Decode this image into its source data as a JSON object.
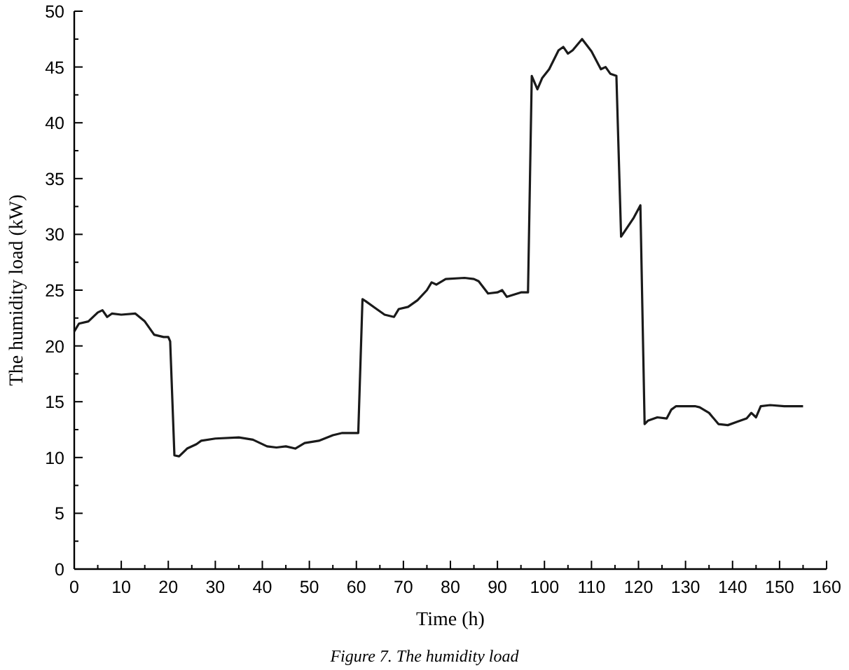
{
  "chart_data": {
    "type": "line",
    "xlabel": "Time (h)",
    "ylabel": "The humidity load (kW)",
    "annotations": [
      "Figure 7. The humidity load"
    ],
    "xlim": [
      0,
      160
    ],
    "xticks": [
      0,
      10,
      20,
      30,
      40,
      50,
      60,
      70,
      80,
      90,
      100,
      110,
      120,
      130,
      140,
      150,
      160
    ],
    "ylim": [
      0,
      50
    ],
    "yticks": [
      0,
      5,
      10,
      15,
      20,
      25,
      30,
      35,
      40,
      45,
      50
    ],
    "grid": false,
    "marker": "none",
    "line_style": "solid",
    "series": [
      {
        "color": "#1a1a1a",
        "x": [
          0,
          1,
          3,
          5,
          6,
          7,
          8,
          10,
          13,
          15,
          17,
          19,
          20,
          20.4,
          21.3,
          22.3,
          24,
          26,
          27,
          30,
          35,
          38,
          41,
          43,
          45,
          47,
          49,
          52,
          55,
          57,
          60.4,
          61.3,
          62,
          64,
          66,
          68,
          69,
          71,
          73,
          75,
          76,
          77,
          79,
          83,
          85,
          86,
          88,
          90,
          91,
          92,
          95,
          96.5,
          97.3,
          98.5,
          99.5,
          101,
          103,
          104,
          105,
          106,
          108,
          110,
          112,
          113,
          114,
          115.3,
          116.3,
          119,
          120.4,
          121.3,
          122,
          124,
          126,
          127,
          128,
          132,
          133,
          135,
          137,
          139,
          141,
          143,
          144,
          145,
          146,
          148,
          151,
          155
        ],
        "values": [
          21.3,
          22,
          22.2,
          23,
          23.2,
          22.6,
          22.9,
          22.8,
          22.9,
          22.2,
          21,
          20.8,
          20.8,
          20.4,
          10.2,
          10.1,
          10.8,
          11.2,
          11.5,
          11.7,
          11.8,
          11.6,
          11,
          10.9,
          11,
          10.8,
          11.3,
          11.5,
          12,
          12.2,
          12.2,
          24.2,
          24,
          23.4,
          22.8,
          22.6,
          23.3,
          23.5,
          24.1,
          25,
          25.7,
          25.5,
          26,
          26.1,
          26,
          25.8,
          24.7,
          24.8,
          25,
          24.4,
          24.8,
          24.8,
          44.2,
          43,
          44,
          44.8,
          46.5,
          46.8,
          46.2,
          46.5,
          47.5,
          46.4,
          44.8,
          45,
          44.4,
          44.2,
          29.8,
          31.5,
          32.6,
          13,
          13.3,
          13.6,
          13.5,
          14.3,
          14.6,
          14.6,
          14.5,
          14,
          13,
          12.9,
          13.2,
          13.5,
          14,
          13.6,
          14.6,
          14.7,
          14.6,
          14.6
        ]
      }
    ]
  }
}
